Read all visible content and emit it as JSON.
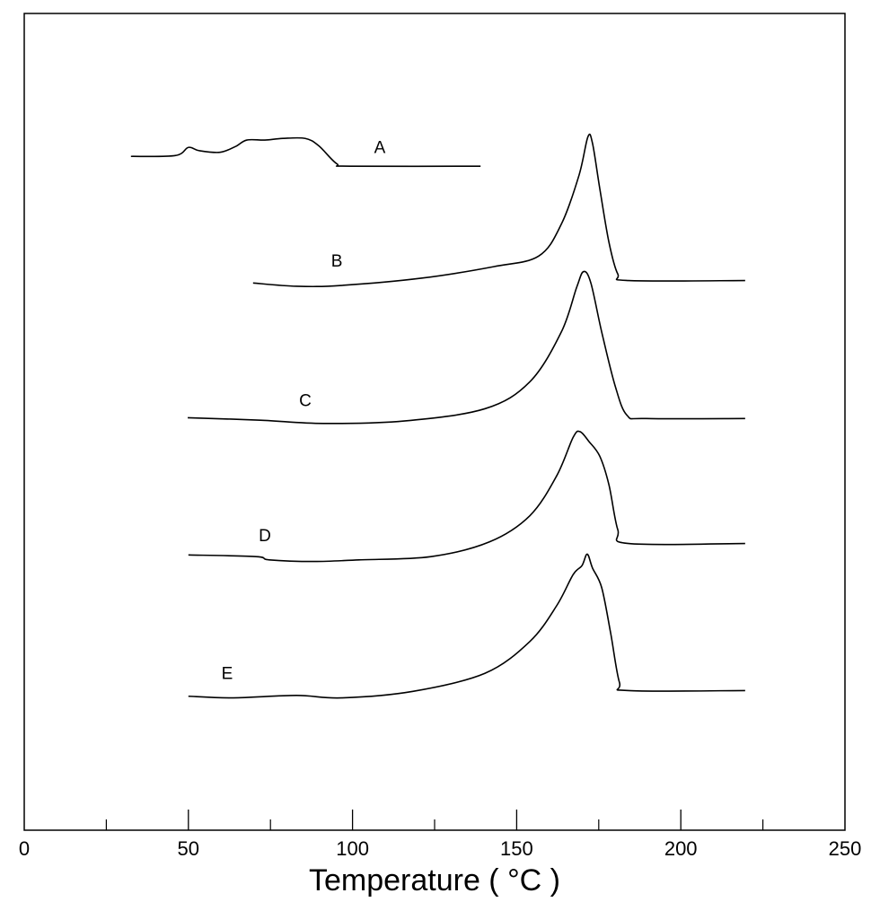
{
  "chart_data": {
    "type": "line",
    "title": "",
    "xlabel": "Temperature ( °C )",
    "ylabel": "",
    "xlim": [
      0,
      250
    ],
    "ylim": [
      0,
      100
    ],
    "x_ticks": [
      0,
      50,
      100,
      150,
      200,
      250
    ],
    "x_tick_labels": [
      "0",
      "50",
      "100",
      "150",
      "200",
      "250"
    ],
    "x_minor_ticks": [
      25,
      75,
      125,
      175,
      225
    ],
    "grid": false,
    "y_units": "arbitrary (stacked curves, no y-axis scale shown)",
    "series": [
      {
        "name": "A",
        "label_at": [
          108.3,
          82.9
        ],
        "points": [
          [
            32.5,
            82.5
          ],
          [
            46,
            82.6
          ],
          [
            50,
            83.6
          ],
          [
            53.3,
            83.2
          ],
          [
            59.6,
            83.0
          ],
          [
            64.3,
            83.7
          ],
          [
            67.8,
            84.5
          ],
          [
            73.3,
            84.5
          ],
          [
            78.8,
            84.7
          ],
          [
            85.6,
            84.7
          ],
          [
            89.7,
            83.8
          ],
          [
            95.2,
            81.6
          ],
          [
            99.3,
            81.3
          ],
          [
            139,
            81.3
          ]
        ]
      },
      {
        "name": "B",
        "label_at": [
          95.2,
          69.0
        ],
        "points": [
          [
            69.7,
            67.0
          ],
          [
            82.9,
            66.6
          ],
          [
            96.6,
            66.7
          ],
          [
            121.2,
            67.6
          ],
          [
            143,
            69.0
          ],
          [
            156.7,
            70.3
          ],
          [
            163.6,
            74.2
          ],
          [
            169,
            80.2
          ],
          [
            171.7,
            84.9
          ],
          [
            173.1,
            84.1
          ],
          [
            175.3,
            78.6
          ],
          [
            178.1,
            72.0
          ],
          [
            180.8,
            68.1
          ],
          [
            184.1,
            67.3
          ],
          [
            219.6,
            67.3
          ]
        ]
      },
      {
        "name": "C",
        "label_at": [
          85.6,
          51.9
        ],
        "points": [
          [
            49.8,
            50.5
          ],
          [
            71.9,
            50.2
          ],
          [
            91.1,
            49.8
          ],
          [
            115.7,
            50.1
          ],
          [
            140.3,
            51.6
          ],
          [
            154,
            54.9
          ],
          [
            163.6,
            61.0
          ],
          [
            168.3,
            66.5
          ],
          [
            170.4,
            68.4
          ],
          [
            172.6,
            67.0
          ],
          [
            175.9,
            61.0
          ],
          [
            180,
            54.4
          ],
          [
            183.6,
            50.8
          ],
          [
            189.5,
            50.4
          ],
          [
            219.6,
            50.4
          ]
        ]
      },
      {
        "name": "D",
        "label_at": [
          73.3,
          35.4
        ],
        "points": [
          [
            50,
            33.7
          ],
          [
            70.6,
            33.5
          ],
          [
            74.6,
            33.1
          ],
          [
            88.3,
            32.9
          ],
          [
            102,
            33.1
          ],
          [
            123.9,
            33.5
          ],
          [
            141.7,
            35.3
          ],
          [
            154,
            38.5
          ],
          [
            162.2,
            43.4
          ],
          [
            167.2,
            48.1
          ],
          [
            169.3,
            48.8
          ],
          [
            172,
            47.6
          ],
          [
            175.3,
            45.8
          ],
          [
            178.1,
            42.3
          ],
          [
            180.8,
            36.8
          ],
          [
            184.1,
            35.1
          ],
          [
            219.6,
            35.1
          ]
        ]
      },
      {
        "name": "E",
        "label_at": [
          61.8,
          18.5
        ],
        "points": [
          [
            50,
            16.4
          ],
          [
            63.7,
            16.2
          ],
          [
            82.9,
            16.5
          ],
          [
            96.6,
            16.2
          ],
          [
            118.4,
            17.0
          ],
          [
            140.3,
            19.2
          ],
          [
            154,
            23.1
          ],
          [
            162.2,
            27.5
          ],
          [
            167.2,
            31.3
          ],
          [
            169.9,
            32.4
          ],
          [
            171.5,
            33.8
          ],
          [
            173.1,
            32.1
          ],
          [
            175.9,
            29.7
          ],
          [
            178.6,
            24.2
          ],
          [
            181.3,
            18.1
          ],
          [
            184.1,
            17.1
          ],
          [
            219.6,
            17.1
          ]
        ]
      }
    ]
  }
}
